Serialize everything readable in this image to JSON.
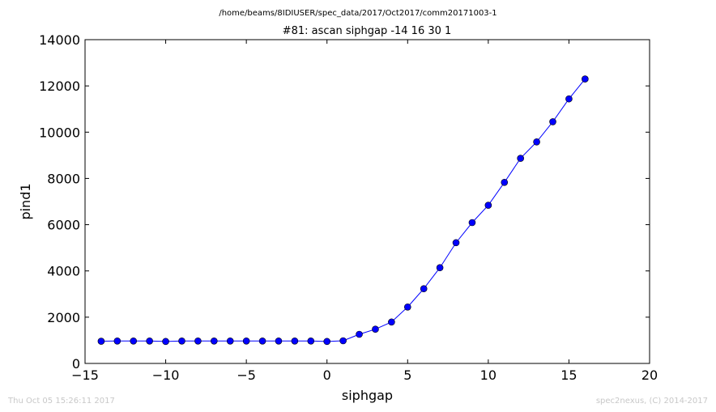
{
  "colors": {
    "series": "#0000ff",
    "footer_text": "#c8c8c8"
  },
  "chart_data": {
    "type": "line",
    "suptitle": "/home/beams/8IDIUSER/spec_data/2017/Oct2017/comm20171003-1",
    "title": "#81: ascan  siphgap -14 16  30 1",
    "xlabel": "siphgap",
    "ylabel": "pind1",
    "xlim": [
      -15,
      20
    ],
    "ylim": [
      0,
      14000
    ],
    "xticks": [
      -15,
      -10,
      -5,
      0,
      5,
      10,
      15,
      20
    ],
    "xtick_labels": [
      "−15",
      "−10",
      "−5",
      "0",
      "5",
      "10",
      "15",
      "20"
    ],
    "yticks": [
      0,
      2000,
      4000,
      6000,
      8000,
      10000,
      12000,
      14000
    ],
    "ytick_labels": [
      "0",
      "2000",
      "4000",
      "6000",
      "8000",
      "10000",
      "12000",
      "14000"
    ],
    "grid": false,
    "marker": "circle",
    "series": [
      {
        "x": [
          -14,
          -13,
          -12,
          -11,
          -10,
          -9,
          -8,
          -7,
          -6,
          -5,
          -4,
          -3,
          -2,
          -1,
          0,
          1,
          2,
          3,
          4,
          5,
          6,
          7,
          8,
          9,
          10,
          11,
          12,
          13,
          14,
          15,
          16
        ],
        "y": [
          960,
          970,
          970,
          970,
          950,
          970,
          970,
          970,
          970,
          970,
          970,
          970,
          970,
          970,
          950,
          980,
          1260,
          1480,
          1790,
          2440,
          3230,
          4140,
          5220,
          6090,
          6840,
          7830,
          8870,
          9580,
          10450,
          11440,
          12300
        ]
      }
    ]
  },
  "footer": {
    "timestamp": "Thu Oct 05 15:26:11 2017",
    "credit": "spec2nexus, (C) 2014-2017"
  }
}
